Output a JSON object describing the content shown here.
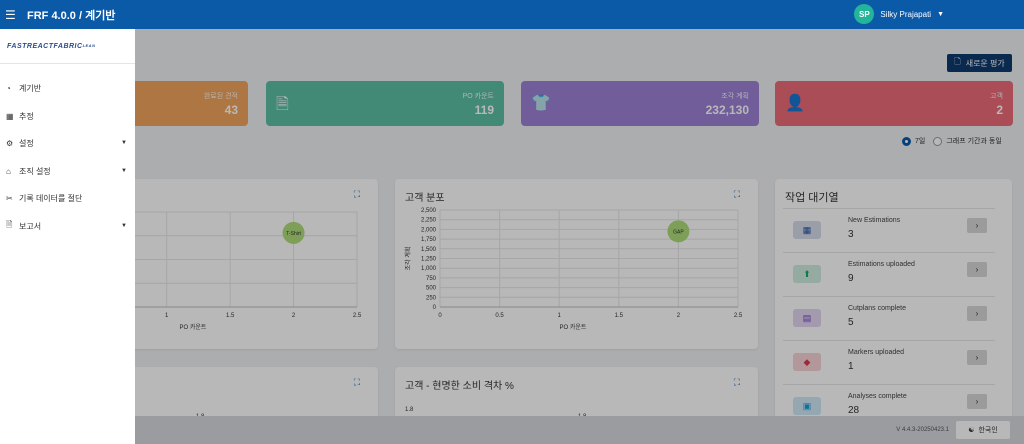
{
  "app": {
    "title": "FRF 4.0.0 / 계기반"
  },
  "user": {
    "initials": "SP",
    "name": "Silky Prajapati"
  },
  "toolbar": {
    "new_eval_label": "새로운 평가"
  },
  "stats": [
    {
      "label": "완료된 견적",
      "value": "43",
      "color": "#f0a45c",
      "icon": "check-icon"
    },
    {
      "label": "PO 카운트",
      "value": "119",
      "color": "#5cc0a2",
      "icon": "document-icon"
    },
    {
      "label": "조각 계획",
      "value": "232,130",
      "color": "#9c82d6",
      "icon": "shirt-icon"
    },
    {
      "label": "고객",
      "value": "2",
      "color": "#ec6b78",
      "icon": "user-icon"
    }
  ],
  "period": {
    "option_7d": "7일",
    "option_match": "그래프 기간과 동일",
    "selected": "7일"
  },
  "charts": {
    "left_top": {
      "xlabel": "PO 카운트"
    },
    "right_top": {
      "title": "고객 분포",
      "xlabel": "PO 카운트",
      "ylabel": "조각 계획"
    },
    "bottom_right": {
      "title": "고객 - 현명한 소비 격차 %"
    }
  },
  "chart_data": [
    {
      "type": "scatter",
      "x": [
        2
      ],
      "y": [
        1950
      ],
      "point_labels": [
        "T-Shirt"
      ],
      "xlabel": "PO 카운트",
      "ylabel": "",
      "xticks": [
        "1",
        "1.5",
        "2",
        "2.5"
      ],
      "xlim": [
        0,
        2.5
      ],
      "ylim": [
        0,
        2500
      ]
    },
    {
      "type": "scatter",
      "title": "고객 분포",
      "x": [
        2
      ],
      "y": [
        1950
      ],
      "point_labels": [
        "GAP"
      ],
      "xlabel": "PO 카운트",
      "ylabel": "조각 계획",
      "xticks": [
        "0",
        "0.5",
        "1",
        "1.5",
        "2",
        "2.5"
      ],
      "yticks": [
        "0",
        "250",
        "500",
        "750",
        "1,000",
        "1,250",
        "1,500",
        "1,750",
        "2,000",
        "2,250",
        "2,500"
      ],
      "xlim": [
        0,
        2.5
      ],
      "ylim": [
        0,
        2500
      ]
    },
    {
      "type": "bar",
      "title": "고객 - 현명한 소비 격차 %",
      "yticks": [
        "1.8"
      ]
    }
  ],
  "work_queue": {
    "title": "작업 대기열",
    "items": [
      {
        "name": "New Estimations",
        "count": "3",
        "icon": "calculator-icon",
        "color": "#1f4fa0"
      },
      {
        "name": "Estimations uploaded",
        "count": "9",
        "icon": "upload-file-icon",
        "color": "#1ba66e"
      },
      {
        "name": "Cutplans complete",
        "count": "5",
        "icon": "clipboard-icon",
        "color": "#6f3fc1"
      },
      {
        "name": "Markers uploaded",
        "count": "1",
        "icon": "shapes-icon",
        "color": "#e03a4b"
      },
      {
        "name": "Analyses complete",
        "count": "28",
        "icon": "report-icon",
        "color": "#1d9ad6"
      }
    ]
  },
  "sidebar": {
    "logo": "FASTREACTFABRIC",
    "logo_sub": "LEAN",
    "items": [
      {
        "label": "계기반",
        "icon": "dashboard-icon",
        "chevron": false
      },
      {
        "label": "추정",
        "icon": "calculator-icon",
        "chevron": false
      },
      {
        "label": "설정",
        "icon": "gear-icon",
        "chevron": true
      },
      {
        "label": "조직 설정",
        "icon": "home-icon",
        "chevron": true
      },
      {
        "label": "기록 데이터를 절단",
        "icon": "scissors-icon",
        "chevron": false
      },
      {
        "label": "보고서",
        "icon": "file-icon",
        "chevron": true
      }
    ]
  },
  "footer": {
    "version": "V 4.4.3-20250423.1",
    "language": "한국인"
  }
}
